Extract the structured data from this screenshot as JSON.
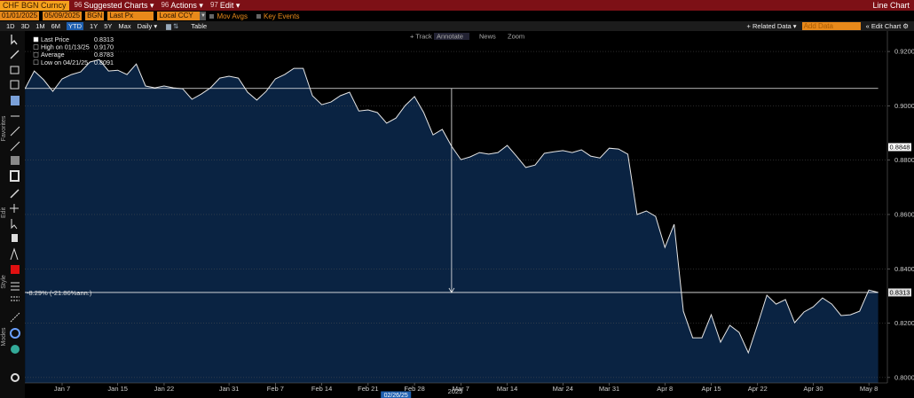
{
  "toolbar": {
    "ticker": "CHF BGN Curncy",
    "menus": [
      {
        "key": "96",
        "label": "Suggested Charts ▾"
      },
      {
        "key": "96",
        "label": "Actions ▾"
      },
      {
        "key": "97",
        "label": "Edit ▾"
      }
    ],
    "view": "Line Chart"
  },
  "inputs": {
    "start": "01/01/2025",
    "end": "05/09/2025",
    "source": "BGN",
    "field": "Last Px",
    "currency": "Local CCY",
    "options": [
      "Mov Avgs",
      "Key Events"
    ]
  },
  "controls": {
    "periods": [
      "1D",
      "3D",
      "1M",
      "6M",
      "YTD",
      "1Y",
      "5Y",
      "Max"
    ],
    "active_period": "YTD",
    "frequency": "Daily ▾",
    "table": "Table",
    "related": "+ Related Data ▾",
    "add_data": "Add Data",
    "edit_chart": "« Edit Chart ⚙"
  },
  "chart_tools": [
    "+ Track",
    "Annotate",
    "News",
    "Zoom"
  ],
  "side_sections": [
    "Favorites",
    "Edit",
    "Style",
    "Modes"
  ],
  "chart_data": {
    "type": "line",
    "categories": [
      null,
      null,
      null,
      null,
      "Jan 7",
      null,
      null,
      null,
      null,
      null,
      "Jan 15",
      null,
      null,
      null,
      null,
      "Jan 22",
      null,
      null,
      null,
      null,
      null,
      null,
      "Jan 31",
      null,
      null,
      null,
      null,
      "Feb 7",
      null,
      null,
      null,
      null,
      "Feb 14",
      null,
      null,
      null,
      null,
      "Feb 21",
      null,
      null,
      null,
      null,
      "Feb 28",
      null,
      null,
      null,
      null,
      "Mar 7",
      null,
      null,
      null,
      null,
      "Mar 14",
      null,
      null,
      null,
      null,
      null,
      "Mar 24",
      null,
      null,
      null,
      null,
      "Mar 31",
      null,
      null,
      null,
      null,
      null,
      "Apr 8",
      null,
      null,
      null,
      null,
      "Apr 15",
      null,
      null,
      null,
      null,
      "Apr 22",
      null,
      null,
      null,
      null,
      null,
      "Apr 30",
      null,
      null,
      null,
      null,
      null,
      "May 8",
      null
    ],
    "year_label": "2025",
    "cursor_label": "02/26/25",
    "series": [
      {
        "name": "Last Price",
        "color": "#e6e6e6",
        "fill": "#0a2342",
        "values": [
          0.9063,
          0.9128,
          0.9096,
          0.9053,
          0.9099,
          0.9115,
          0.9125,
          0.9161,
          0.917,
          0.9128,
          0.9131,
          0.9115,
          0.9154,
          0.9073,
          0.9066,
          0.9073,
          0.9066,
          0.9063,
          0.9024,
          0.9043,
          0.9066,
          0.9102,
          0.9109,
          0.9102,
          0.905,
          0.9021,
          0.9053,
          0.9099,
          0.9115,
          0.9138,
          0.9138,
          0.9037,
          0.9004,
          0.9014,
          0.9037,
          0.905,
          0.8981,
          0.8985,
          0.8975,
          0.8936,
          0.8955,
          0.9001,
          0.9034,
          0.8975,
          0.8893,
          0.8913,
          0.8851,
          0.8802,
          0.8812,
          0.8828,
          0.8822,
          0.8828,
          0.8854,
          0.8815,
          0.8773,
          0.8782,
          0.8825,
          0.8831,
          0.8835,
          0.8828,
          0.8838,
          0.8815,
          0.8808,
          0.8844,
          0.8841,
          0.8822,
          0.86,
          0.8613,
          0.8593,
          0.8479,
          0.8564,
          0.8244,
          0.8146,
          0.8146,
          0.8231,
          0.813,
          0.8192,
          0.8166,
          0.8091,
          0.8195,
          0.8303,
          0.827,
          0.8287,
          0.8202,
          0.8241,
          0.826,
          0.8293,
          0.827,
          0.8228,
          0.8231,
          0.8244,
          0.8322,
          0.8313
        ]
      }
    ],
    "stats": [
      {
        "label": "High on 01/13/25",
        "value": 0.917,
        "value_label": "0.9170"
      },
      {
        "label": "Average",
        "value": 0.8783
      },
      {
        "label": "Low on 04/21/25",
        "value": 0.8091
      }
    ],
    "change_label": "-8.29% (-21.86%ann.)",
    "measure_start": 0.9064,
    "price_tags": [
      0.8848
    ],
    "ylim": [
      0.798,
      0.9272
    ],
    "yticks": [
      {
        "value": 0.8,
        "label": "0.8000"
      },
      {
        "value": 0.82,
        "label": "0.8200"
      },
      {
        "value": 0.84,
        "label": "0.8400"
      },
      {
        "value": 0.86,
        "label": "0.8600"
      },
      {
        "value": 0.88,
        "label": "0.8800"
      },
      {
        "value": 0.9,
        "label": "0.9000"
      },
      {
        "value": 0.92,
        "label": "0.9200"
      }
    ],
    "grid": true
  }
}
